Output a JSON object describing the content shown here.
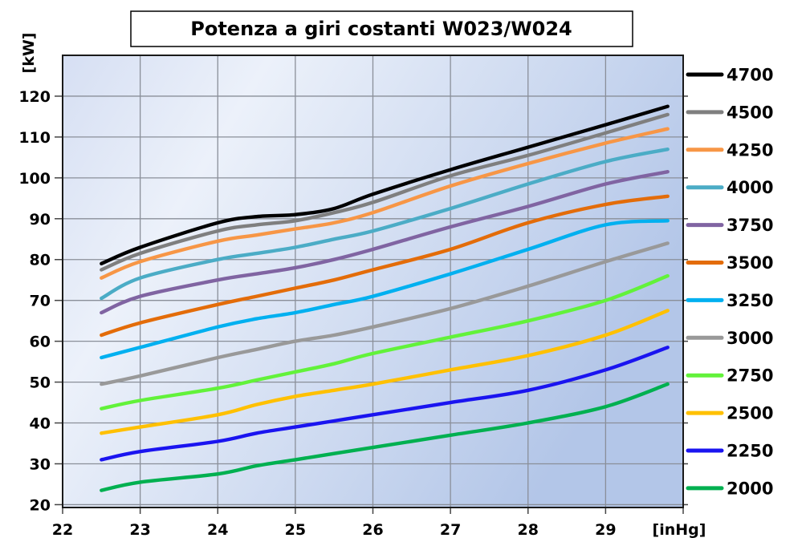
{
  "title": "Potenza a giri costanti W023/W024",
  "colors": {
    "plot_bg_gradient": [
      "#d6dff3",
      "#ecf1fa",
      "#b3c6e8"
    ],
    "grid": "#8a8f99",
    "axis": "#1a1a1a",
    "tick": "#444444",
    "text": "#000000",
    "title_box_border": "#000000",
    "title_box_fill": "#ffffff"
  },
  "chart_data": {
    "type": "line",
    "title": "Potenza a giri costanti W023/W024",
    "xlabel": "[inHg]",
    "ylabel": "[kW]",
    "xlim": [
      22,
      30
    ],
    "ylim": [
      19.3,
      130
    ],
    "x_ticks": [
      22,
      23,
      24,
      25,
      26,
      27,
      28,
      29
    ],
    "y_ticks": [
      20,
      30,
      40,
      50,
      60,
      70,
      80,
      90,
      100,
      110,
      120
    ],
    "grid": true,
    "legend_position": "right",
    "x": [
      22.5,
      23,
      24,
      24.5,
      25,
      25.5,
      26,
      27,
      28,
      29,
      29.8
    ],
    "series": [
      {
        "name": "4700",
        "color": "#000000",
        "values": [
          79,
          83,
          89,
          90.5,
          91,
          92.5,
          96,
          102,
          107.5,
          113,
          117.5
        ]
      },
      {
        "name": "4500",
        "color": "#7f7f7f",
        "values": [
          77.5,
          81.5,
          87,
          88.5,
          89.5,
          91.5,
          94,
          100.5,
          105.5,
          111,
          115.5
        ]
      },
      {
        "name": "4250",
        "color": "#f79646",
        "values": [
          75.5,
          79.5,
          84.5,
          86,
          87.5,
          89,
          91.5,
          98,
          103.5,
          108.5,
          112
        ]
      },
      {
        "name": "4000",
        "color": "#4bacc6",
        "values": [
          70.5,
          75.5,
          80,
          81.5,
          83,
          85,
          87,
          92.5,
          98.5,
          104,
          107
        ]
      },
      {
        "name": "3750",
        "color": "#8064a2",
        "values": [
          67,
          71,
          75,
          76.5,
          78,
          80,
          82.5,
          88,
          93,
          98.5,
          101.5
        ]
      },
      {
        "name": "3500",
        "color": "#e36c09",
        "values": [
          61.5,
          64.5,
          69,
          71,
          73,
          75,
          77.5,
          82.5,
          89,
          93.5,
          95.5
        ]
      },
      {
        "name": "3250",
        "color": "#00b0f0",
        "values": [
          56,
          58.5,
          63.5,
          65.5,
          67,
          69,
          71,
          76.5,
          82.5,
          88.5,
          89.5
        ]
      },
      {
        "name": "3000",
        "color": "#999999",
        "values": [
          49.5,
          51.5,
          56,
          58,
          60,
          61.5,
          63.5,
          68,
          73.5,
          79.5,
          84
        ]
      },
      {
        "name": "2750",
        "color": "#62f23a",
        "values": [
          43.5,
          45.5,
          48.5,
          50.5,
          52.5,
          54.5,
          57,
          61,
          65,
          70,
          76
        ]
      },
      {
        "name": "2500",
        "color": "#ffc000",
        "values": [
          37.5,
          39,
          42,
          44.5,
          46.5,
          48,
          49.5,
          53,
          56.5,
          61.5,
          67.5
        ]
      },
      {
        "name": "2250",
        "color": "#1a14f0",
        "values": [
          31,
          33,
          35.5,
          37.5,
          39,
          40.5,
          42,
          45,
          48,
          53,
          58.5
        ]
      },
      {
        "name": "2000",
        "color": "#00b050",
        "values": [
          23.5,
          25.5,
          27.5,
          29.5,
          31,
          32.5,
          34,
          37,
          40,
          44,
          49.5
        ]
      }
    ]
  }
}
